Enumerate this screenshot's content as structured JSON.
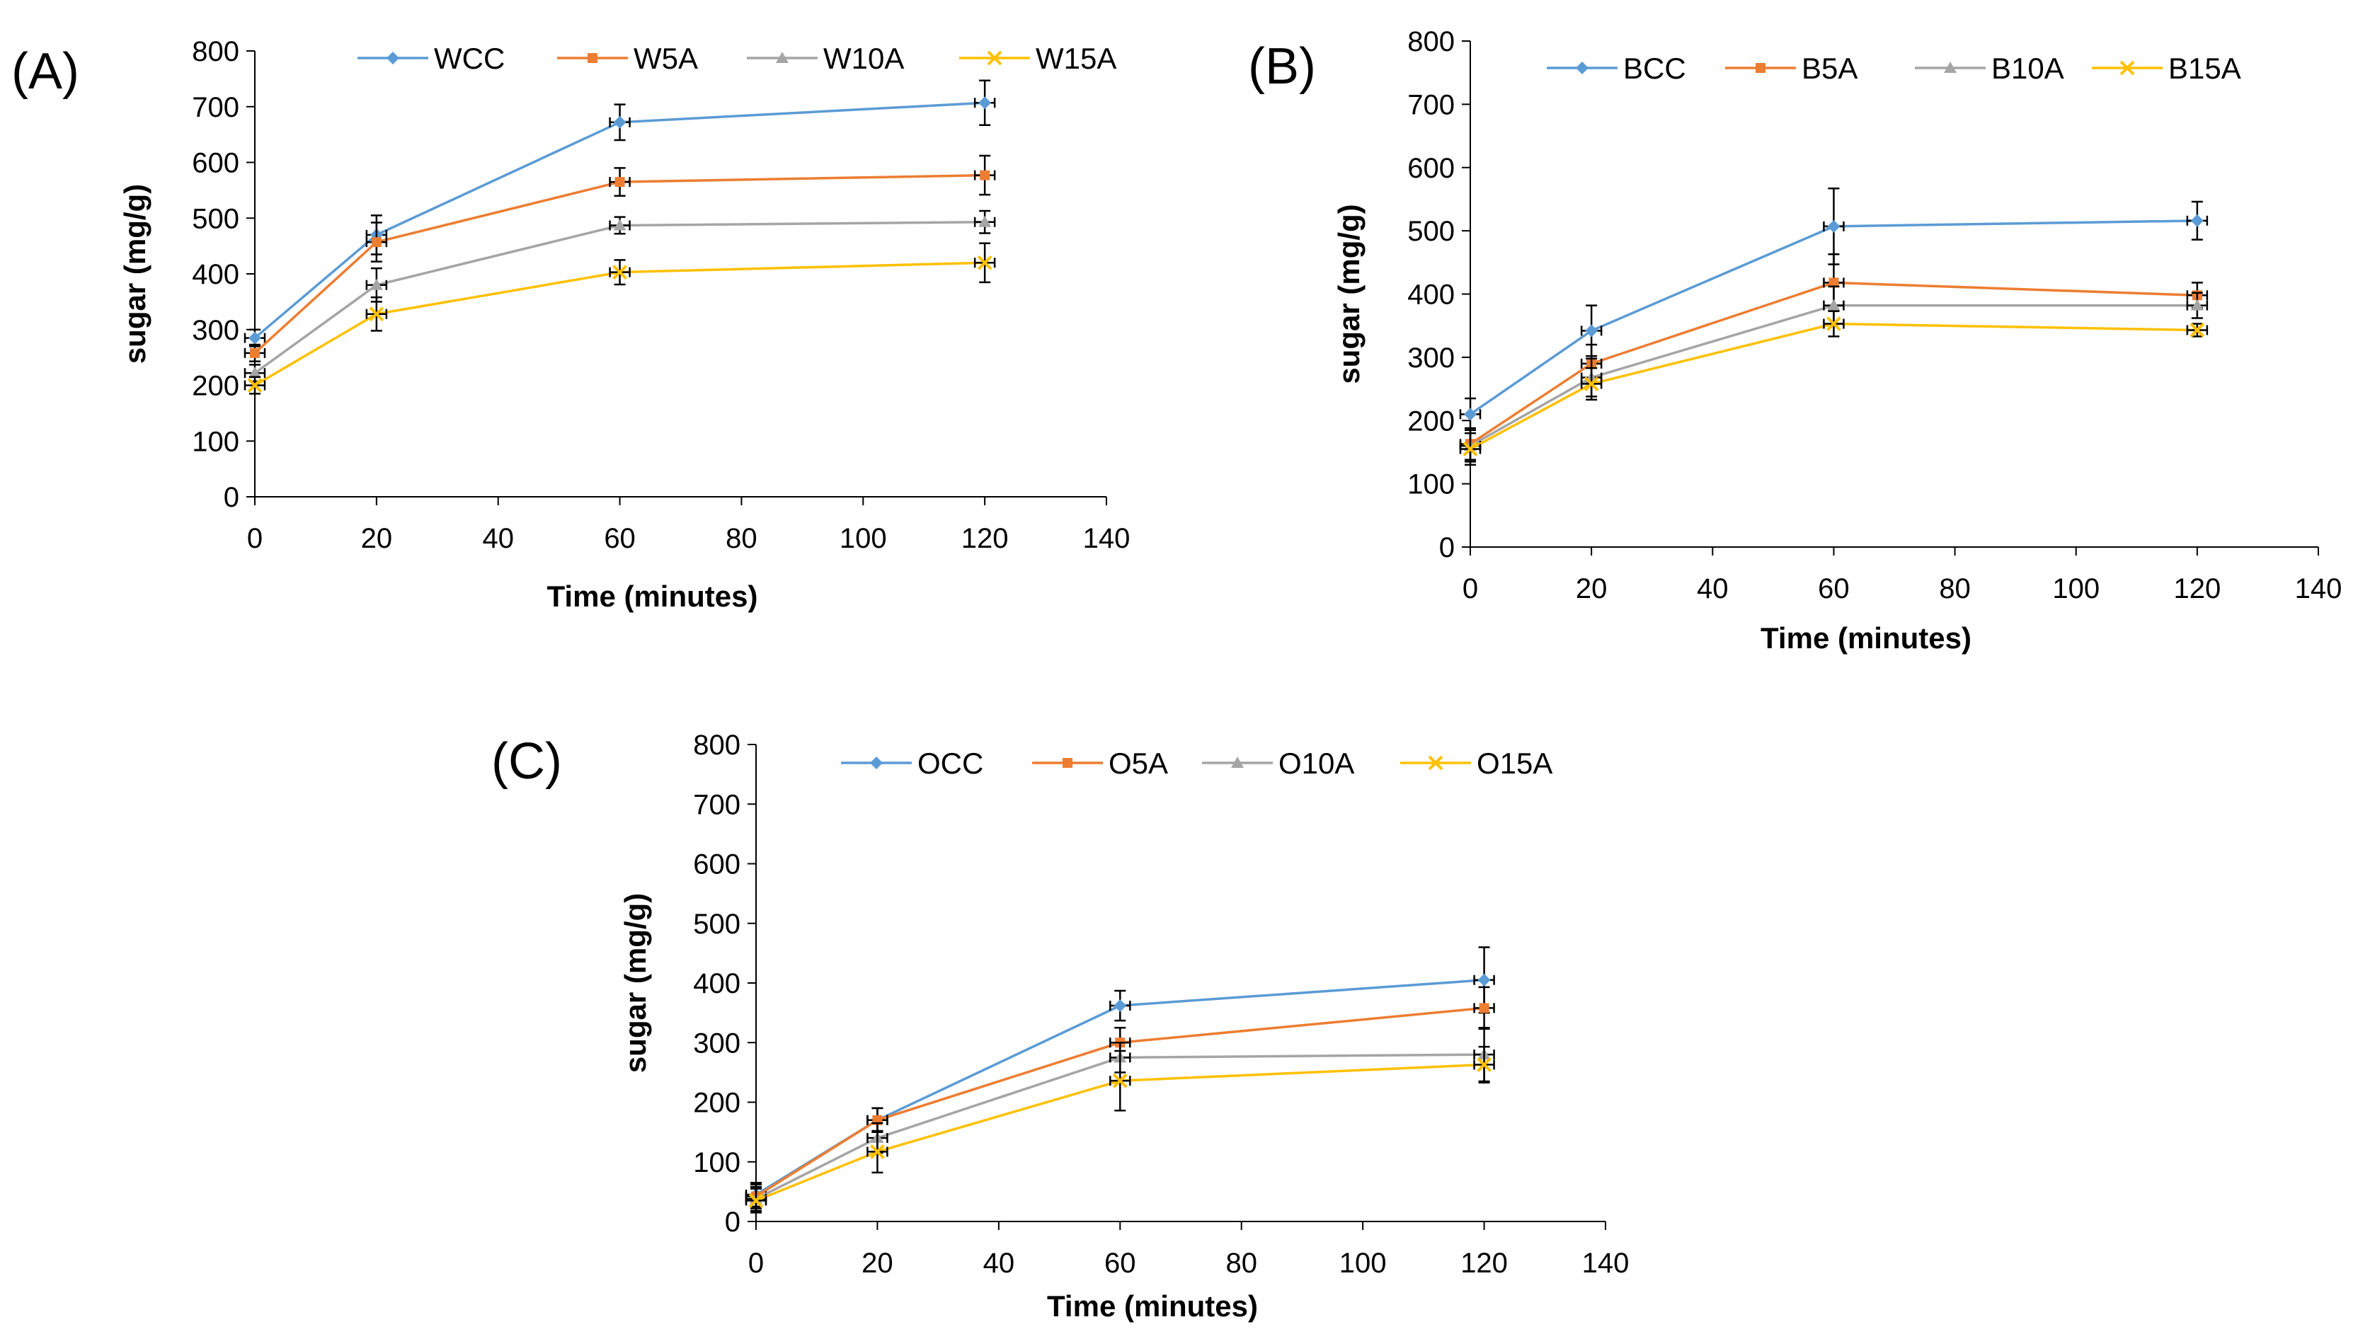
{
  "colors": {
    "series1": "#5b9bd5",
    "series2": "#ed7d31",
    "series3": "#a5a5a5",
    "series4": "#ffc000",
    "axis": "#000000"
  },
  "chart_data": [
    {
      "type": "line",
      "panel_label": "(A)",
      "title": "",
      "xlabel": "Time (minutes)",
      "ylabel": "sugar (mg/g)",
      "xlim": [
        0,
        140
      ],
      "ylim": [
        0,
        800
      ],
      "xticks": [
        "0",
        "20",
        "40",
        "60",
        "80",
        "100",
        "120",
        "140"
      ],
      "yticks": [
        "0",
        "100",
        "200",
        "300",
        "400",
        "500",
        "600",
        "700",
        "800"
      ],
      "legend_position": "top",
      "grid": false,
      "x": [
        0,
        20,
        60,
        120
      ],
      "series": [
        {
          "name": "WCC",
          "values": [
            285,
            470,
            672,
            707
          ],
          "errors": [
            15,
            35,
            32,
            40
          ]
        },
        {
          "name": "W5A",
          "values": [
            258,
            457,
            565,
            577
          ],
          "errors": [
            15,
            35,
            25,
            35
          ]
        },
        {
          "name": "W10A",
          "values": [
            222,
            380,
            487,
            493
          ],
          "errors": [
            15,
            30,
            15,
            20
          ]
        },
        {
          "name": "W15A",
          "values": [
            200,
            328,
            403,
            420
          ],
          "errors": [
            15,
            30,
            22,
            35
          ]
        }
      ]
    },
    {
      "type": "line",
      "panel_label": "(B)",
      "title": "",
      "xlabel": "Time (minutes)",
      "ylabel": "sugar (mg/g)",
      "xlim": [
        0,
        140
      ],
      "ylim": [
        0,
        800
      ],
      "xticks": [
        "0",
        "20",
        "40",
        "60",
        "80",
        "100",
        "120",
        "140"
      ],
      "yticks": [
        "0",
        "100",
        "200",
        "300",
        "400",
        "500",
        "600",
        "700",
        "800"
      ],
      "legend_position": "top",
      "grid": false,
      "x": [
        0,
        20,
        60,
        120
      ],
      "series": [
        {
          "name": "BCC",
          "values": [
            210,
            342,
            507,
            516
          ],
          "errors": [
            25,
            40,
            60,
            30
          ]
        },
        {
          "name": "B5A",
          "values": [
            163,
            290,
            418,
            398
          ],
          "errors": [
            25,
            30,
            45,
            20
          ]
        },
        {
          "name": "B10A",
          "values": [
            160,
            268,
            382,
            382
          ],
          "errors": [
            25,
            30,
            30,
            20
          ]
        },
        {
          "name": "B15A",
          "values": [
            155,
            258,
            353,
            343
          ],
          "errors": [
            25,
            25,
            20,
            10
          ]
        }
      ]
    },
    {
      "type": "line",
      "panel_label": "(C)",
      "title": "",
      "xlabel": "Time (minutes)",
      "ylabel": "sugar (mg/g)",
      "xlim": [
        0,
        140
      ],
      "ylim": [
        0,
        800
      ],
      "xticks": [
        "0",
        "20",
        "40",
        "60",
        "80",
        "100",
        "120",
        "140"
      ],
      "yticks": [
        "0",
        "100",
        "200",
        "300",
        "400",
        "500",
        "600",
        "700",
        "800"
      ],
      "legend_position": "top",
      "grid": false,
      "x": [
        0,
        20,
        60,
        120
      ],
      "series": [
        {
          "name": "OCC",
          "values": [
            45,
            170,
            362,
            405
          ],
          "errors": [
            20,
            20,
            25,
            55
          ]
        },
        {
          "name": "O5A",
          "values": [
            42,
            170,
            300,
            358
          ],
          "errors": [
            20,
            20,
            25,
            35
          ]
        },
        {
          "name": "O10A",
          "values": [
            38,
            140,
            275,
            280
          ],
          "errors": [
            20,
            25,
            25,
            45
          ]
        },
        {
          "name": "O15A",
          "values": [
            35,
            117,
            236,
            263
          ],
          "errors": [
            20,
            35,
            50,
            30
          ]
        }
      ]
    }
  ]
}
